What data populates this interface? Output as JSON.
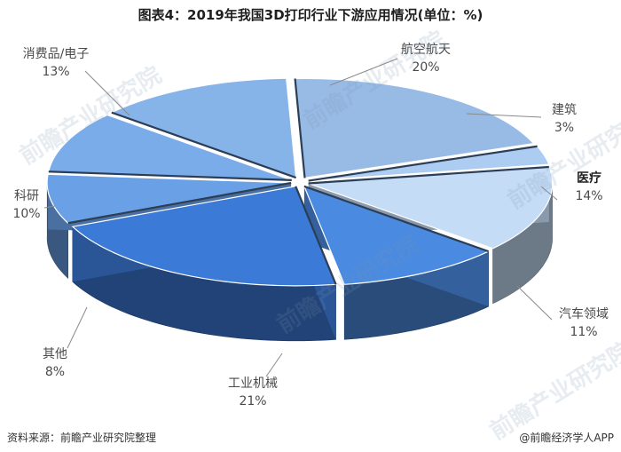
{
  "chart_data": {
    "type": "pie",
    "title": "图表4：2019年我国3D打印行业下游应用情况(单位：%)",
    "slices": [
      {
        "label": "航空航天",
        "value": 20,
        "pct": "20%",
        "color": "#98bbe6"
      },
      {
        "label": "建筑",
        "value": 3,
        "pct": "3%",
        "color": "#acccf1"
      },
      {
        "label": "医疗",
        "value": 14,
        "pct": "14%",
        "color": "#c5dcf6",
        "highlight": true
      },
      {
        "label": "汽车领域",
        "value": 11,
        "pct": "11%",
        "color": "#4a8ae0"
      },
      {
        "label": "工业机械",
        "value": 21,
        "pct": "21%",
        "color": "#3c7ad8"
      },
      {
        "label": "其他",
        "value": 8,
        "pct": "8%",
        "color": "#6aa0e6"
      },
      {
        "label": "科研",
        "value": 10,
        "pct": "10%",
        "color": "#7aacea"
      },
      {
        "label": "消费品/电子",
        "value": 13,
        "pct": "13%",
        "color": "#86b3e8"
      }
    ]
  },
  "footer": {
    "source": "资料来源：前瞻产业研究院整理",
    "brand": "@前瞻经济学人APP"
  },
  "watermark": "前瞻产业研究院"
}
